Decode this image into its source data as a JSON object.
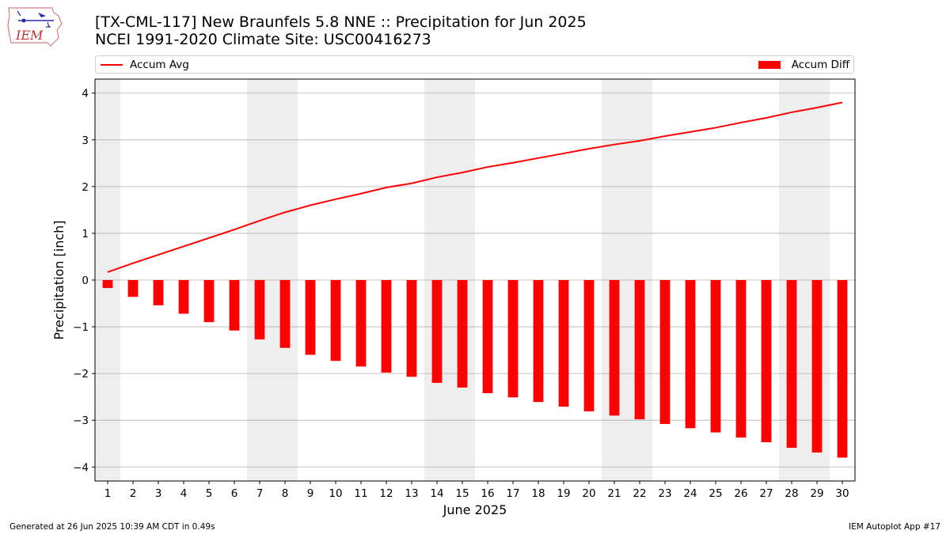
{
  "header": {
    "title_line1": "[TX-CML-117] New Braunfels 5.8 NNE :: Precipitation for Jun 2025",
    "title_line2": "NCEI 1991-2020 Climate Site: USC00416273",
    "logo_text": "IEM"
  },
  "legend": {
    "line_label": "Accum Avg",
    "bar_label": "Accum Diff",
    "placement": "top (above plot, full width)"
  },
  "footer": {
    "left": "Generated at 26 Jun 2025 10:39 AM CDT in 0.49s",
    "right": "IEM Autoplot App #17"
  },
  "colors": {
    "series": "#ff0000",
    "weekend_shade": "#eeeeee",
    "grid": "#b0b0b0"
  },
  "chart_data": {
    "type": "bar",
    "xlabel": "June 2025",
    "ylabel": "Precipitation [inch]",
    "ylim": [
      -4.3,
      4.3
    ],
    "xlim": [
      0.5,
      30.5
    ],
    "yticks": [
      -4,
      -3,
      -2,
      -1,
      0,
      1,
      2,
      3,
      4
    ],
    "grid": true,
    "categories": [
      1,
      2,
      3,
      4,
      5,
      6,
      7,
      8,
      9,
      10,
      11,
      12,
      13,
      14,
      15,
      16,
      17,
      18,
      19,
      20,
      21,
      22,
      23,
      24,
      25,
      26,
      27,
      28,
      29,
      30
    ],
    "series": [
      {
        "name": "Accum Diff",
        "kind": "bar",
        "values": [
          -0.17,
          -0.36,
          -0.54,
          -0.72,
          -0.9,
          -1.08,
          -1.27,
          -1.45,
          -1.6,
          -1.73,
          -1.85,
          -1.98,
          -2.07,
          -2.2,
          -2.3,
          -2.42,
          -2.51,
          -2.61,
          -2.71,
          -2.81,
          -2.9,
          -2.98,
          -3.08,
          -3.17,
          -3.26,
          -3.37,
          -3.47,
          -3.59,
          -3.69,
          -3.8
        ]
      },
      {
        "name": "Accum Avg",
        "kind": "line",
        "values": [
          0.17,
          0.36,
          0.54,
          0.72,
          0.9,
          1.08,
          1.27,
          1.45,
          1.6,
          1.73,
          1.85,
          1.98,
          2.07,
          2.2,
          2.3,
          2.42,
          2.51,
          2.61,
          2.71,
          2.81,
          2.9,
          2.98,
          3.08,
          3.17,
          3.26,
          3.37,
          3.47,
          3.59,
          3.69,
          3.8
        ]
      }
    ],
    "shaded_days": [
      [
        1,
        1
      ],
      [
        7,
        8
      ],
      [
        14,
        15
      ],
      [
        21,
        22
      ],
      [
        28,
        29
      ]
    ]
  }
}
